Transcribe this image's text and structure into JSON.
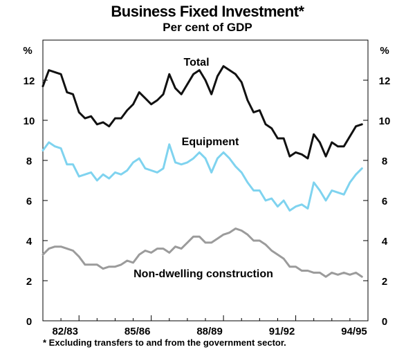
{
  "chart_data": {
    "type": "line",
    "title": "Business Fixed Investment*",
    "subtitle": "Per cent of GDP",
    "left_unit": "%",
    "right_unit": "%",
    "footnote": "* Excluding transfers to and from the government sector.",
    "ylim": [
      0,
      14
    ],
    "yticks": [
      "0",
      "2",
      "4",
      "6",
      "8",
      "10",
      "12"
    ],
    "xlim": [
      0,
      54
    ],
    "xtick_positions": [
      6,
      18,
      30,
      42,
      54
    ],
    "xtick_labels": [
      "82/83",
      "85/86",
      "88/89",
      "91/92",
      "94/95"
    ],
    "grid": false,
    "series": [
      {
        "name": "Total",
        "color": "#111111",
        "x_start": 0,
        "values": [
          11.7,
          12.5,
          12.4,
          12.3,
          11.4,
          11.3,
          10.4,
          10.1,
          10.2,
          9.8,
          9.9,
          9.7,
          10.1,
          10.1,
          10.5,
          10.8,
          11.4,
          11.1,
          10.8,
          11.0,
          11.3,
          12.3,
          11.6,
          11.3,
          11.8,
          12.3,
          12.5,
          12.0,
          11.3,
          12.2,
          12.7,
          12.5,
          12.3,
          11.9,
          11.0,
          10.4,
          10.5,
          9.8,
          9.6,
          9.1,
          9.1,
          8.2,
          8.4,
          8.3,
          8.1,
          9.3,
          8.9,
          8.2,
          8.9,
          8.7,
          8.7,
          9.2,
          9.7,
          9.8
        ]
      },
      {
        "name": "Equipment",
        "color": "#7fd3ef",
        "x_start": 0,
        "values": [
          8.5,
          8.9,
          8.7,
          8.6,
          7.8,
          7.8,
          7.2,
          7.3,
          7.4,
          7.0,
          7.3,
          7.1,
          7.4,
          7.3,
          7.5,
          7.9,
          8.1,
          7.6,
          7.5,
          7.4,
          7.6,
          8.8,
          7.9,
          7.8,
          7.9,
          8.1,
          8.4,
          8.1,
          7.4,
          8.1,
          8.4,
          8.1,
          7.7,
          7.4,
          6.9,
          6.5,
          6.5,
          6.0,
          6.1,
          5.7,
          6.0,
          5.5,
          5.7,
          5.8,
          5.6,
          6.9,
          6.5,
          6.0,
          6.5,
          6.4,
          6.3,
          6.9,
          7.3,
          7.6
        ]
      },
      {
        "name": "Non-dwelling construction",
        "color": "#9b9b9b",
        "x_start": 0,
        "values": [
          3.3,
          3.6,
          3.7,
          3.7,
          3.6,
          3.5,
          3.2,
          2.8,
          2.8,
          2.8,
          2.6,
          2.7,
          2.7,
          2.8,
          3.0,
          2.9,
          3.3,
          3.5,
          3.4,
          3.6,
          3.6,
          3.4,
          3.7,
          3.6,
          3.9,
          4.2,
          4.2,
          3.9,
          3.9,
          4.1,
          4.3,
          4.4,
          4.6,
          4.5,
          4.3,
          4.0,
          4.0,
          3.8,
          3.5,
          3.3,
          3.1,
          2.7,
          2.7,
          2.5,
          2.5,
          2.4,
          2.4,
          2.2,
          2.4,
          2.3,
          2.4,
          2.3,
          2.4,
          2.2
        ]
      }
    ],
    "series_labels": [
      "Total",
      "Equipment",
      "Non-dwelling construction"
    ]
  }
}
